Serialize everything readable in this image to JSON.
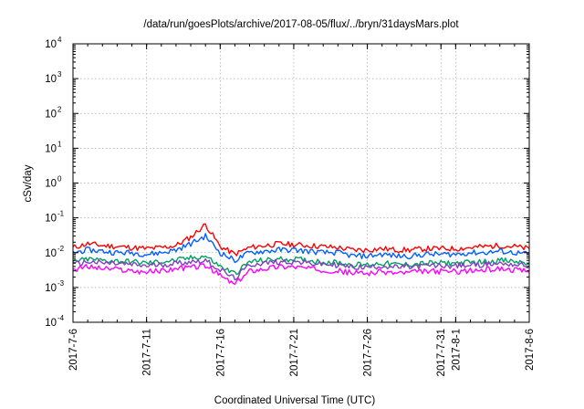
{
  "chart_data": {
    "type": "line",
    "title": "/data/run/goesPlots/archive/2017-08-05/flux/../bryn/31daysMars.plot",
    "xlabel": "Coordinated Universal Time (UTC)",
    "ylabel": "cSv/day",
    "yscale": "log",
    "ylim": [
      0.0001,
      10000
    ],
    "xlim": [
      "2017-7-6",
      "2017-8-6"
    ],
    "grid": true,
    "x_ticks": [
      "2017-7-6",
      "2017-7-11",
      "2017-7-16",
      "2017-7-21",
      "2017-7-26",
      "2017-7-31",
      "2017-8-1",
      "2017-8-6"
    ],
    "y_ticks": [
      {
        "base": "10",
        "exp": "-4"
      },
      {
        "base": "10",
        "exp": "-3"
      },
      {
        "base": "10",
        "exp": "-2"
      },
      {
        "base": "10",
        "exp": "-1"
      },
      {
        "base": "10",
        "exp": "0"
      },
      {
        "base": "10",
        "exp": "1"
      },
      {
        "base": "10",
        "exp": "2"
      },
      {
        "base": "10",
        "exp": "3"
      },
      {
        "base": "10",
        "exp": "4"
      }
    ],
    "x": [
      "2017-7-6",
      "2017-7-7",
      "2017-7-8",
      "2017-7-9",
      "2017-7-10",
      "2017-7-11",
      "2017-7-12",
      "2017-7-13",
      "2017-7-14",
      "2017-7-15",
      "2017-7-16",
      "2017-7-17",
      "2017-7-18",
      "2017-7-19",
      "2017-7-20",
      "2017-7-21",
      "2017-7-22",
      "2017-7-23",
      "2017-7-24",
      "2017-7-25",
      "2017-7-26",
      "2017-7-27",
      "2017-7-28",
      "2017-7-29",
      "2017-7-30",
      "2017-7-31",
      "2017-8-1",
      "2017-8-2",
      "2017-8-3",
      "2017-8-4",
      "2017-8-5",
      "2017-8-6"
    ],
    "series": [
      {
        "color": "#ff0000",
        "values": [
          0.014,
          0.018,
          0.016,
          0.015,
          0.014,
          0.013,
          0.014,
          0.016,
          0.028,
          0.065,
          0.015,
          0.009,
          0.014,
          0.016,
          0.018,
          0.017,
          0.016,
          0.015,
          0.014,
          0.012,
          0.012,
          0.013,
          0.012,
          0.012,
          0.013,
          0.013,
          0.013,
          0.014,
          0.015,
          0.016,
          0.015,
          0.013
        ]
      },
      {
        "color": "#0060ff",
        "values": [
          0.01,
          0.012,
          0.011,
          0.01,
          0.01,
          0.009,
          0.01,
          0.012,
          0.018,
          0.03,
          0.01,
          0.006,
          0.01,
          0.011,
          0.012,
          0.012,
          0.011,
          0.01,
          0.01,
          0.008,
          0.008,
          0.009,
          0.008,
          0.008,
          0.009,
          0.009,
          0.009,
          0.01,
          0.01,
          0.011,
          0.01,
          0.009
        ]
      },
      {
        "color": "#00a060",
        "values": [
          0.0055,
          0.0065,
          0.006,
          0.0058,
          0.0055,
          0.005,
          0.0055,
          0.006,
          0.007,
          0.008,
          0.004,
          0.0025,
          0.0055,
          0.006,
          0.0065,
          0.0065,
          0.006,
          0.0055,
          0.0052,
          0.0045,
          0.0045,
          0.005,
          0.0045,
          0.0046,
          0.005,
          0.005,
          0.005,
          0.0052,
          0.0055,
          0.006,
          0.0055,
          0.005
        ]
      },
      {
        "color": "#8040c0",
        "values": [
          0.0045,
          0.0055,
          0.005,
          0.0048,
          0.0045,
          0.0042,
          0.0045,
          0.005,
          0.0055,
          0.006,
          0.0032,
          0.0018,
          0.0045,
          0.005,
          0.0055,
          0.0055,
          0.005,
          0.0046,
          0.0044,
          0.0038,
          0.0038,
          0.0042,
          0.0038,
          0.0039,
          0.0042,
          0.0042,
          0.0042,
          0.0044,
          0.0046,
          0.005,
          0.0046,
          0.0042
        ]
      },
      {
        "color": "#ff00ff",
        "values": [
          0.0032,
          0.004,
          0.0035,
          0.0033,
          0.003,
          0.0028,
          0.003,
          0.0035,
          0.0038,
          0.0042,
          0.0022,
          0.0012,
          0.003,
          0.0035,
          0.004,
          0.004,
          0.0035,
          0.0032,
          0.003,
          0.0026,
          0.0026,
          0.0028,
          0.0026,
          0.0027,
          0.0029,
          0.0029,
          0.0029,
          0.003,
          0.0032,
          0.0035,
          0.0032,
          0.0028
        ]
      }
    ]
  }
}
